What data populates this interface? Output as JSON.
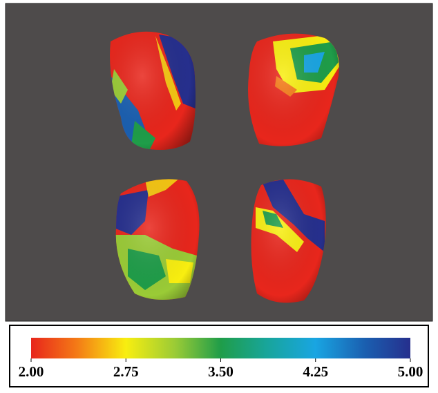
{
  "colorbar": {
    "range": [
      2,
      5
    ],
    "ticks": [
      {
        "value": 2,
        "label": "2.00"
      },
      {
        "value": 2.75,
        "label": "2.75"
      },
      {
        "value": 3.5,
        "label": "3.50"
      },
      {
        "value": 4.25,
        "label": "4.25"
      },
      {
        "value": 5,
        "label": "5.00"
      }
    ]
  }
}
